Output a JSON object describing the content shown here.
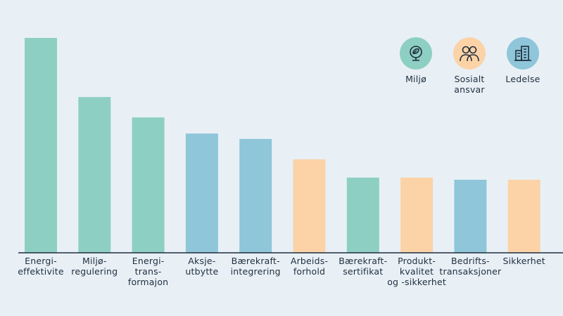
{
  "colors": {
    "background": "#e8f0f6",
    "environment": "#8ecfc3",
    "social": "#fbd3a7",
    "governance": "#8fc6d9",
    "axis": "#1f2d3d"
  },
  "legend": [
    {
      "key": "environment",
      "label": "Miljø",
      "icon": "globe-leaf-icon"
    },
    {
      "key": "social",
      "label": "Sosialt\nansvar",
      "icon": "people-icon"
    },
    {
      "key": "governance",
      "label": "Ledelse",
      "icon": "buildings-icon"
    }
  ],
  "chart_data": {
    "type": "bar",
    "title": "",
    "xlabel": "",
    "ylabel": "",
    "ylim": [
      0,
      100
    ],
    "grid": false,
    "legend_position": "top-right",
    "categories": [
      "Energi-\neffektivite",
      "Miljø-\nregulering",
      "Energi-\ntrans-\nformajon",
      "Aksje-\nutbytte",
      "Bærekraft-\nintegrering",
      "Arbeids-\nforhold",
      "Bærekraft-\nsertifikat",
      "Produkt-\nkvalitet\nog -sikkerhet",
      "Bedrifts-\ntransaksjoner",
      "Sikkerhet"
    ],
    "values": [
      100,
      72.5,
      63,
      55.5,
      53,
      43.5,
      35,
      35,
      34,
      34
    ],
    "groups": [
      "environment",
      "environment",
      "environment",
      "governance",
      "governance",
      "social",
      "environment",
      "social",
      "governance",
      "social"
    ]
  }
}
